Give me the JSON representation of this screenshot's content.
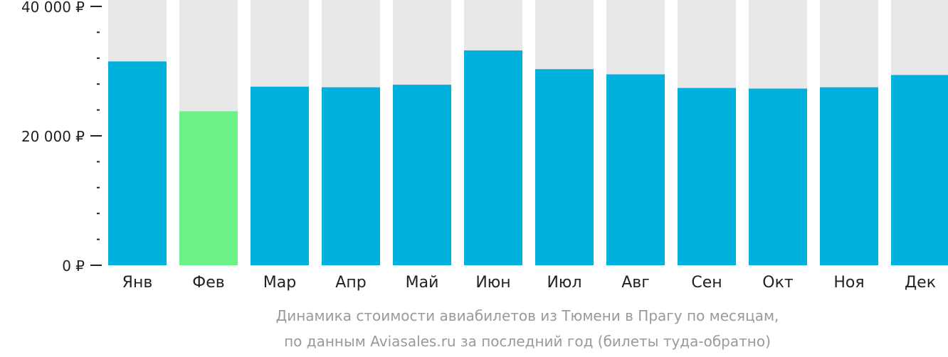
{
  "chart_data": {
    "type": "bar",
    "categories": [
      "Янв",
      "Фев",
      "Мар",
      "Апр",
      "Май",
      "Июн",
      "Июл",
      "Авг",
      "Сен",
      "Окт",
      "Ноя",
      "Дек"
    ],
    "values": [
      31500,
      23800,
      27600,
      27500,
      27900,
      33200,
      30300,
      29500,
      27400,
      27300,
      27500,
      29400
    ],
    "ylim": [
      0,
      40000
    ],
    "yticks": [
      {
        "value": 0,
        "label": "0 ₽"
      },
      {
        "value": 20000,
        "label": "20 000 ₽"
      },
      {
        "value": 40000,
        "label": "40 000 ₽"
      }
    ],
    "minor_tick_step": 4000,
    "highlight_index": 1,
    "caption_lines": [
      "Динамика стоимости авиабилетов из Тюмени в Прагу по месяцам,",
      "по данным Aviasales.ru за последний год (билеты туда-обратно)"
    ],
    "title": "",
    "xlabel": "",
    "ylabel": "",
    "grid": false,
    "legend": "none"
  },
  "colors": {
    "bar": "#00b0dd",
    "highlight_bar": "#6cf387",
    "bar_background": "#e8e8e8",
    "axis": "#222222",
    "caption": "#9a9a9a"
  }
}
